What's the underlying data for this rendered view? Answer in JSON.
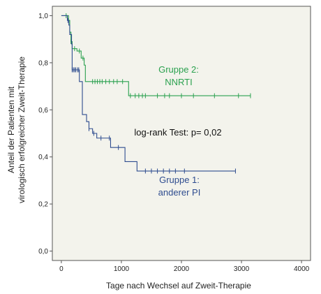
{
  "chart_data": {
    "type": "line",
    "subtype": "kaplan-meier",
    "title": "",
    "xlabel": "Tage nach Wechsel auf Zweit-Therapie",
    "ylabel_line1": "Anteil der Patienten mit",
    "ylabel_line2": "virologisch erfolgreicher Zweit-Therapie",
    "xlim": [
      -150,
      4150
    ],
    "ylim": [
      -0.04,
      1.04
    ],
    "x_ticks": [
      0,
      1000,
      2000,
      3000,
      4000
    ],
    "x_tick_labels": [
      "0",
      "1000",
      "2000",
      "3000",
      "4000"
    ],
    "y_ticks": [
      0.0,
      0.2,
      0.4,
      0.6,
      0.8,
      1.0
    ],
    "y_tick_labels": [
      "0,0",
      "0,2",
      "0,4",
      "0,6",
      "0,8",
      "1,0"
    ],
    "background_color": "#f3f3ec",
    "grid": false,
    "series": [
      {
        "name": "Gruppe 2: NNRTI",
        "color": "#2ba14f",
        "steps": [
          [
            0,
            1.0
          ],
          [
            120,
            0.98
          ],
          [
            140,
            0.93
          ],
          [
            160,
            0.89
          ],
          [
            180,
            0.86
          ],
          [
            260,
            0.85
          ],
          [
            330,
            0.82
          ],
          [
            380,
            0.79
          ],
          [
            400,
            0.72
          ],
          [
            1100,
            0.72
          ],
          [
            1120,
            0.66
          ],
          [
            3150,
            0.66
          ]
        ],
        "censored": [
          [
            80,
            1.0
          ],
          [
            160,
            0.89
          ],
          [
            220,
            0.86
          ],
          [
            300,
            0.85
          ],
          [
            360,
            0.82
          ],
          [
            520,
            0.72
          ],
          [
            560,
            0.72
          ],
          [
            600,
            0.72
          ],
          [
            640,
            0.72
          ],
          [
            680,
            0.72
          ],
          [
            740,
            0.72
          ],
          [
            800,
            0.72
          ],
          [
            870,
            0.72
          ],
          [
            930,
            0.72
          ],
          [
            1020,
            0.72
          ],
          [
            1150,
            0.66
          ],
          [
            1230,
            0.66
          ],
          [
            1290,
            0.66
          ],
          [
            1350,
            0.66
          ],
          [
            1400,
            0.66
          ],
          [
            1600,
            0.66
          ],
          [
            1720,
            0.66
          ],
          [
            1800,
            0.66
          ],
          [
            2000,
            0.66
          ],
          [
            2200,
            0.66
          ],
          [
            2550,
            0.66
          ],
          [
            2950,
            0.66
          ],
          [
            3150,
            0.66
          ]
        ]
      },
      {
        "name": "Gruppe 1: anderer PI",
        "color": "#2e4c8f",
        "steps": [
          [
            0,
            1.0
          ],
          [
            100,
            0.98
          ],
          [
            125,
            0.96
          ],
          [
            140,
            0.92
          ],
          [
            170,
            0.88
          ],
          [
            180,
            0.77
          ],
          [
            300,
            0.72
          ],
          [
            350,
            0.58
          ],
          [
            420,
            0.55
          ],
          [
            460,
            0.52
          ],
          [
            520,
            0.5
          ],
          [
            590,
            0.48
          ],
          [
            800,
            0.48
          ],
          [
            820,
            0.44
          ],
          [
            1010,
            0.44
          ],
          [
            1060,
            0.38
          ],
          [
            1240,
            0.38
          ],
          [
            1260,
            0.34
          ],
          [
            2900,
            0.34
          ]
        ],
        "censored": [
          [
            110,
            0.98
          ],
          [
            180,
            0.77
          ],
          [
            200,
            0.77
          ],
          [
            220,
            0.77
          ],
          [
            240,
            0.77
          ],
          [
            270,
            0.77
          ],
          [
            290,
            0.77
          ],
          [
            460,
            0.52
          ],
          [
            540,
            0.5
          ],
          [
            660,
            0.48
          ],
          [
            800,
            0.48
          ],
          [
            950,
            0.44
          ],
          [
            1400,
            0.34
          ],
          [
            1500,
            0.34
          ],
          [
            1600,
            0.34
          ],
          [
            1700,
            0.34
          ],
          [
            1800,
            0.34
          ],
          [
            1900,
            0.34
          ],
          [
            2050,
            0.34
          ],
          [
            2900,
            0.34
          ]
        ]
      }
    ],
    "annotations": {
      "group2_line1": "Gruppe 2:",
      "group2_line2": "NNRTI",
      "logrank": "log-rank Test: p= 0,02",
      "group1_line1": "Gruppe 1:",
      "group1_line2": "anderer PI"
    }
  }
}
